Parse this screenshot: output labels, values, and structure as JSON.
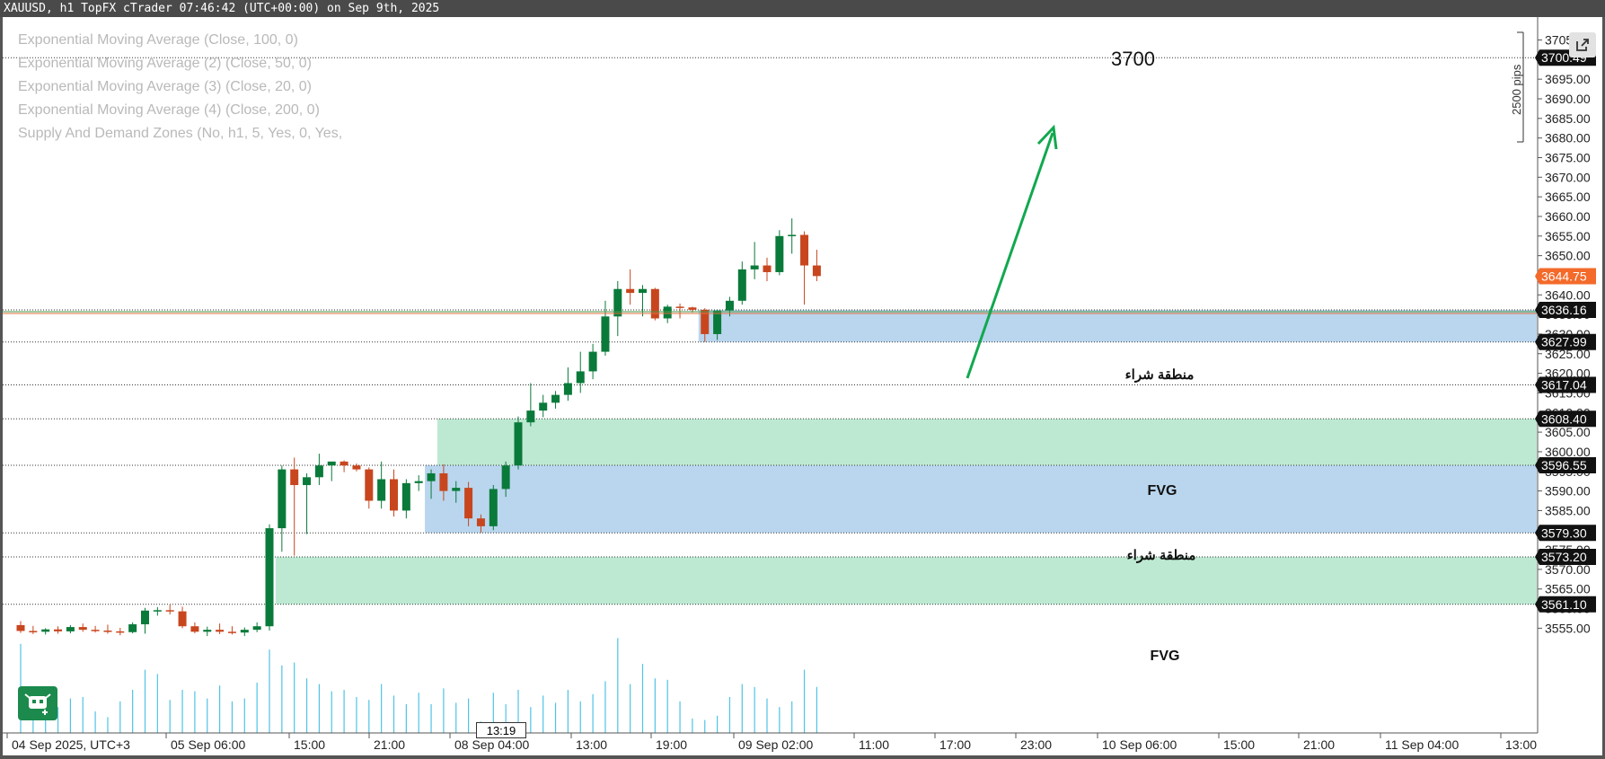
{
  "window": {
    "title": "XAUUSD, h1 TopFX cTrader 07:46:42 (UTC+00:00) on Sep 9th, 2025"
  },
  "legend": [
    "Exponential Moving Average (Close, 100, 0)",
    "Exponential Moving Average (2) (Close, 50, 0)",
    "Exponential Moving Average (3) (Close, 20, 0)",
    "Exponential Moving Average (4) (Close, 200, 0)",
    "Supply And Demand Zones (No, h1, 5, Yes, 0, Yes,"
  ],
  "annotations": {
    "target_text": "3700",
    "pips_text": "2500 pips",
    "fvg_label": "FVG",
    "buy_zone_label": "منطقة شراء"
  },
  "time_cursor": "13:19",
  "icons": {
    "bot": "cbot-robot-icon",
    "expand": "expand-icon"
  },
  "colors": {
    "bull": "#0a7a3a",
    "bear": "#c8461e",
    "buy_zone": "#b9d6ee",
    "fvg_zone": "#bde9d2",
    "arrow": "#12a84f",
    "current_price_bg": "#f36a2a",
    "volume": "#4fc3e6"
  },
  "chart_data": {
    "type": "candlestick",
    "symbol": "XAUUSD",
    "timeframe": "h1",
    "y_ticks": [
      3705,
      3700,
      3695,
      3690,
      3685,
      3680,
      3675,
      3670,
      3665,
      3660,
      3655,
      3650,
      3645,
      3640,
      3635,
      3630,
      3625,
      3620,
      3615,
      3610,
      3605,
      3600,
      3595,
      3590,
      3585,
      3580,
      3575,
      3570,
      3565,
      3560,
      3555
    ],
    "y_tick_labels": [
      "3705.00",
      "3700.00",
      "3695.00",
      "3690.00",
      "3685.00",
      "3680.00",
      "3675.00",
      "3670.00",
      "3665.00",
      "3660.00",
      "3655.00",
      "3650.00",
      "3645.00",
      "3640.00",
      "3635.00",
      "3630.00",
      "3625.00",
      "3620.00",
      "3615.00",
      "3610.00",
      "3605.00",
      "3600.00",
      "3595.00",
      "3590.00",
      "3585.00",
      "3580.00",
      "3575.00",
      "3570.00",
      "3565.00",
      "3560.00",
      "3555.00"
    ],
    "ylim": [
      3552,
      3708.5
    ],
    "x_tick_labels": [
      "04 Sep 2025, UTC+3",
      "05 Sep 06:00",
      "15:00",
      "21:00",
      "08 Sep 04:00",
      "13:00",
      "19:00",
      "09 Sep 02:00",
      "11:00",
      "17:00",
      "23:00",
      "10 Sep 06:00",
      "15:00",
      "21:00",
      "11 Sep 04:00",
      "13:00"
    ],
    "price_labels": [
      {
        "value": 3700.49,
        "text": "3700.49",
        "kind": "level"
      },
      {
        "value": 3644.75,
        "text": "3644.75",
        "kind": "current"
      },
      {
        "value": 3636.16,
        "text": "3636.16",
        "kind": "level"
      },
      {
        "value": 3627.99,
        "text": "3627.99",
        "kind": "level"
      },
      {
        "value": 3617.04,
        "text": "3617.04",
        "kind": "level"
      },
      {
        "value": 3608.4,
        "text": "3608.40",
        "kind": "level"
      },
      {
        "value": 3596.55,
        "text": "3596.55",
        "kind": "level"
      },
      {
        "value": 3579.3,
        "text": "3579.30",
        "kind": "level"
      },
      {
        "value": 3573.2,
        "text": "3573.20",
        "kind": "level"
      },
      {
        "value": 3561.1,
        "text": "3561.10",
        "kind": "level"
      }
    ],
    "zones": [
      {
        "kind": "buy",
        "top": 3636.16,
        "bottom": 3627.99,
        "start_bar": 55
      },
      {
        "kind": "fvg",
        "top": 3608.4,
        "bottom": 3596.55,
        "start_bar": 34
      },
      {
        "kind": "buy",
        "top": 3596.55,
        "bottom": 3579.3,
        "start_bar": 33
      },
      {
        "kind": "fvg",
        "top": 3573.2,
        "bottom": 3561.1,
        "start_bar": 21
      }
    ],
    "candles": [
      {
        "o": 3555.8,
        "h": 3556.8,
        "l": 3553.8,
        "c": 3554.3
      },
      {
        "o": 3554.3,
        "h": 3555.6,
        "l": 3553.5,
        "c": 3554.1
      },
      {
        "o": 3554.1,
        "h": 3555.0,
        "l": 3553.4,
        "c": 3554.7
      },
      {
        "o": 3554.7,
        "h": 3555.5,
        "l": 3553.6,
        "c": 3554.2
      },
      {
        "o": 3554.2,
        "h": 3555.8,
        "l": 3553.7,
        "c": 3555.3
      },
      {
        "o": 3555.3,
        "h": 3556.2,
        "l": 3554.1,
        "c": 3554.6
      },
      {
        "o": 3554.6,
        "h": 3555.6,
        "l": 3553.9,
        "c": 3554.4
      },
      {
        "o": 3554.4,
        "h": 3555.9,
        "l": 3553.6,
        "c": 3554.2
      },
      {
        "o": 3554.2,
        "h": 3555.1,
        "l": 3553.2,
        "c": 3554.0
      },
      {
        "o": 3554.0,
        "h": 3556.5,
        "l": 3553.7,
        "c": 3556.0
      },
      {
        "o": 3556.0,
        "h": 3560.2,
        "l": 3553.6,
        "c": 3559.5
      },
      {
        "o": 3559.5,
        "h": 3560.4,
        "l": 3558.2,
        "c": 3559.6
      },
      {
        "o": 3559.6,
        "h": 3561.0,
        "l": 3558.5,
        "c": 3559.3
      },
      {
        "o": 3559.3,
        "h": 3560.5,
        "l": 3555.0,
        "c": 3555.5
      },
      {
        "o": 3555.5,
        "h": 3556.5,
        "l": 3553.7,
        "c": 3554.1
      },
      {
        "o": 3554.1,
        "h": 3555.4,
        "l": 3553.0,
        "c": 3554.6
      },
      {
        "o": 3554.6,
        "h": 3556.2,
        "l": 3553.5,
        "c": 3554.1
      },
      {
        "o": 3554.1,
        "h": 3555.5,
        "l": 3553.4,
        "c": 3553.9
      },
      {
        "o": 3553.9,
        "h": 3555.2,
        "l": 3553.0,
        "c": 3554.6
      },
      {
        "o": 3554.6,
        "h": 3556.5,
        "l": 3554.0,
        "c": 3555.5
      },
      {
        "o": 3555.5,
        "h": 3581.5,
        "l": 3554.4,
        "c": 3580.5
      },
      {
        "o": 3580.5,
        "h": 3596.5,
        "l": 3574.5,
        "c": 3595.5
      },
      {
        "o": 3595.5,
        "h": 3598.5,
        "l": 3573.5,
        "c": 3591.5
      },
      {
        "o": 3591.5,
        "h": 3594.5,
        "l": 3579.0,
        "c": 3593.5
      },
      {
        "o": 3593.5,
        "h": 3599.5,
        "l": 3591.5,
        "c": 3596.5
      },
      {
        "o": 3596.5,
        "h": 3597.2,
        "l": 3592.5,
        "c": 3597.5
      },
      {
        "o": 3597.5,
        "h": 3597.8,
        "l": 3594.8,
        "c": 3596.5
      },
      {
        "o": 3596.5,
        "h": 3597.0,
        "l": 3595.0,
        "c": 3595.5
      },
      {
        "o": 3595.5,
        "h": 3596.0,
        "l": 3585.5,
        "c": 3587.5
      },
      {
        "o": 3587.5,
        "h": 3597.5,
        "l": 3585.5,
        "c": 3593.0
      },
      {
        "o": 3593.0,
        "h": 3595.5,
        "l": 3583.5,
        "c": 3585.0
      },
      {
        "o": 3585.0,
        "h": 3593.0,
        "l": 3583.0,
        "c": 3592.0
      },
      {
        "o": 3592.0,
        "h": 3594.0,
        "l": 3590.0,
        "c": 3592.5
      },
      {
        "o": 3592.5,
        "h": 3595.5,
        "l": 3588.0,
        "c": 3594.5
      },
      {
        "o": 3594.5,
        "h": 3596.8,
        "l": 3587.5,
        "c": 3590.0
      },
      {
        "o": 3590.0,
        "h": 3592.5,
        "l": 3587.0,
        "c": 3590.8
      },
      {
        "o": 3590.8,
        "h": 3592.3,
        "l": 3581.0,
        "c": 3583.0
      },
      {
        "o": 3583.0,
        "h": 3584.0,
        "l": 3579.4,
        "c": 3581.0
      },
      {
        "o": 3581.0,
        "h": 3591.5,
        "l": 3580.0,
        "c": 3590.5
      },
      {
        "o": 3590.5,
        "h": 3597.5,
        "l": 3588.5,
        "c": 3596.5
      },
      {
        "o": 3596.5,
        "h": 3609.0,
        "l": 3595.5,
        "c": 3607.5
      },
      {
        "o": 3607.5,
        "h": 3617.5,
        "l": 3606.5,
        "c": 3610.5
      },
      {
        "o": 3610.5,
        "h": 3614.5,
        "l": 3608.8,
        "c": 3612.5
      },
      {
        "o": 3612.5,
        "h": 3615.5,
        "l": 3611.0,
        "c": 3614.5
      },
      {
        "o": 3614.5,
        "h": 3621.5,
        "l": 3613.0,
        "c": 3617.5
      },
      {
        "o": 3617.5,
        "h": 3625.5,
        "l": 3615.0,
        "c": 3620.5
      },
      {
        "o": 3620.5,
        "h": 3627.5,
        "l": 3618.5,
        "c": 3625.5
      },
      {
        "o": 3625.5,
        "h": 3638.5,
        "l": 3624.5,
        "c": 3634.5
      },
      {
        "o": 3634.5,
        "h": 3643.5,
        "l": 3629.5,
        "c": 3641.5
      },
      {
        "o": 3641.5,
        "h": 3646.5,
        "l": 3637.5,
        "c": 3640.5
      },
      {
        "o": 3640.5,
        "h": 3642.5,
        "l": 3634.5,
        "c": 3641.5
      },
      {
        "o": 3641.5,
        "h": 3641.8,
        "l": 3633.5,
        "c": 3634.0
      },
      {
        "o": 3634.0,
        "h": 3637.5,
        "l": 3632.8,
        "c": 3637.0
      },
      {
        "o": 3637.0,
        "h": 3637.8,
        "l": 3634.0,
        "c": 3636.8
      },
      {
        "o": 3636.8,
        "h": 3637.0,
        "l": 3635.5,
        "c": 3636.2
      },
      {
        "o": 3636.2,
        "h": 3636.6,
        "l": 3628.0,
        "c": 3630.0
      },
      {
        "o": 3630.0,
        "h": 3636.3,
        "l": 3628.5,
        "c": 3636.0
      },
      {
        "o": 3636.0,
        "h": 3639.5,
        "l": 3634.5,
        "c": 3638.5
      },
      {
        "o": 3638.5,
        "h": 3648.5,
        "l": 3637.5,
        "c": 3646.5
      },
      {
        "o": 3646.5,
        "h": 3653.5,
        "l": 3644.0,
        "c": 3647.5
      },
      {
        "o": 3647.5,
        "h": 3649.5,
        "l": 3643.5,
        "c": 3645.8
      },
      {
        "o": 3645.8,
        "h": 3656.5,
        "l": 3645.0,
        "c": 3655.0
      },
      {
        "o": 3655.0,
        "h": 3659.5,
        "l": 3650.5,
        "c": 3655.3
      },
      {
        "o": 3655.3,
        "h": 3656.2,
        "l": 3637.5,
        "c": 3647.5
      },
      {
        "o": 3647.5,
        "h": 3651.5,
        "l": 3643.5,
        "c": 3644.8
      }
    ],
    "volumes": [
      0.62,
      0.32,
      0.22,
      0.18,
      0.24,
      0.25,
      0.15,
      0.11,
      0.22,
      0.3,
      0.44,
      0.41,
      0.23,
      0.3,
      0.29,
      0.24,
      0.33,
      0.22,
      0.24,
      0.35,
      0.58,
      0.47,
      0.49,
      0.38,
      0.34,
      0.29,
      0.3,
      0.25,
      0.23,
      0.34,
      0.26,
      0.2,
      0.28,
      0.2,
      0.31,
      0.21,
      0.24,
      0.08,
      0.28,
      0.2,
      0.3,
      0.18,
      0.26,
      0.21,
      0.3,
      0.22,
      0.27,
      0.36,
      0.66,
      0.34,
      0.48,
      0.38,
      0.37,
      0.22,
      0.1,
      0.09,
      0.12,
      0.25,
      0.34,
      0.32,
      0.24,
      0.18,
      0.22,
      0.44,
      0.32
    ]
  }
}
